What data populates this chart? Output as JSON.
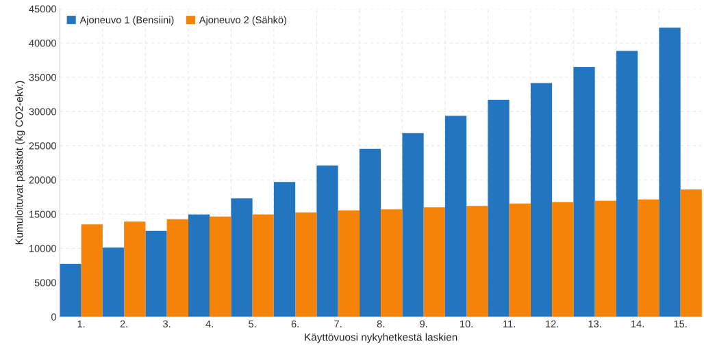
{
  "chart_data": {
    "type": "bar",
    "xlabel": "Käyttövuosi nykyhetkestä laskien",
    "ylabel": "Kumuloituvat päästöt (kg CO2-ekv.)",
    "categories": [
      "1.",
      "2.",
      "3.",
      "4.",
      "5.",
      "6.",
      "7.",
      "8.",
      "9.",
      "10.",
      "11.",
      "12.",
      "13.",
      "14.",
      "15."
    ],
    "series": [
      {
        "name": "Ajoneuvo 1 (Bensiini)",
        "color": "#2475bf",
        "values": [
          7750,
          10100,
          12550,
          14950,
          17300,
          19700,
          22100,
          24550,
          26850,
          29350,
          31700,
          34150,
          36500,
          38850,
          42250
        ]
      },
      {
        "name": "Ajoneuvo 2 (Sähkö)",
        "color": "#f58307",
        "values": [
          13500,
          13900,
          14250,
          14650,
          14950,
          15250,
          15550,
          15700,
          16000,
          16200,
          16550,
          16750,
          16950,
          17150,
          18600
        ]
      }
    ],
    "ylim": [
      0,
      45000
    ],
    "yticks": [
      0,
      5000,
      10000,
      15000,
      20000,
      25000,
      30000,
      35000,
      40000,
      45000
    ],
    "grid": true,
    "legend": "top left"
  }
}
